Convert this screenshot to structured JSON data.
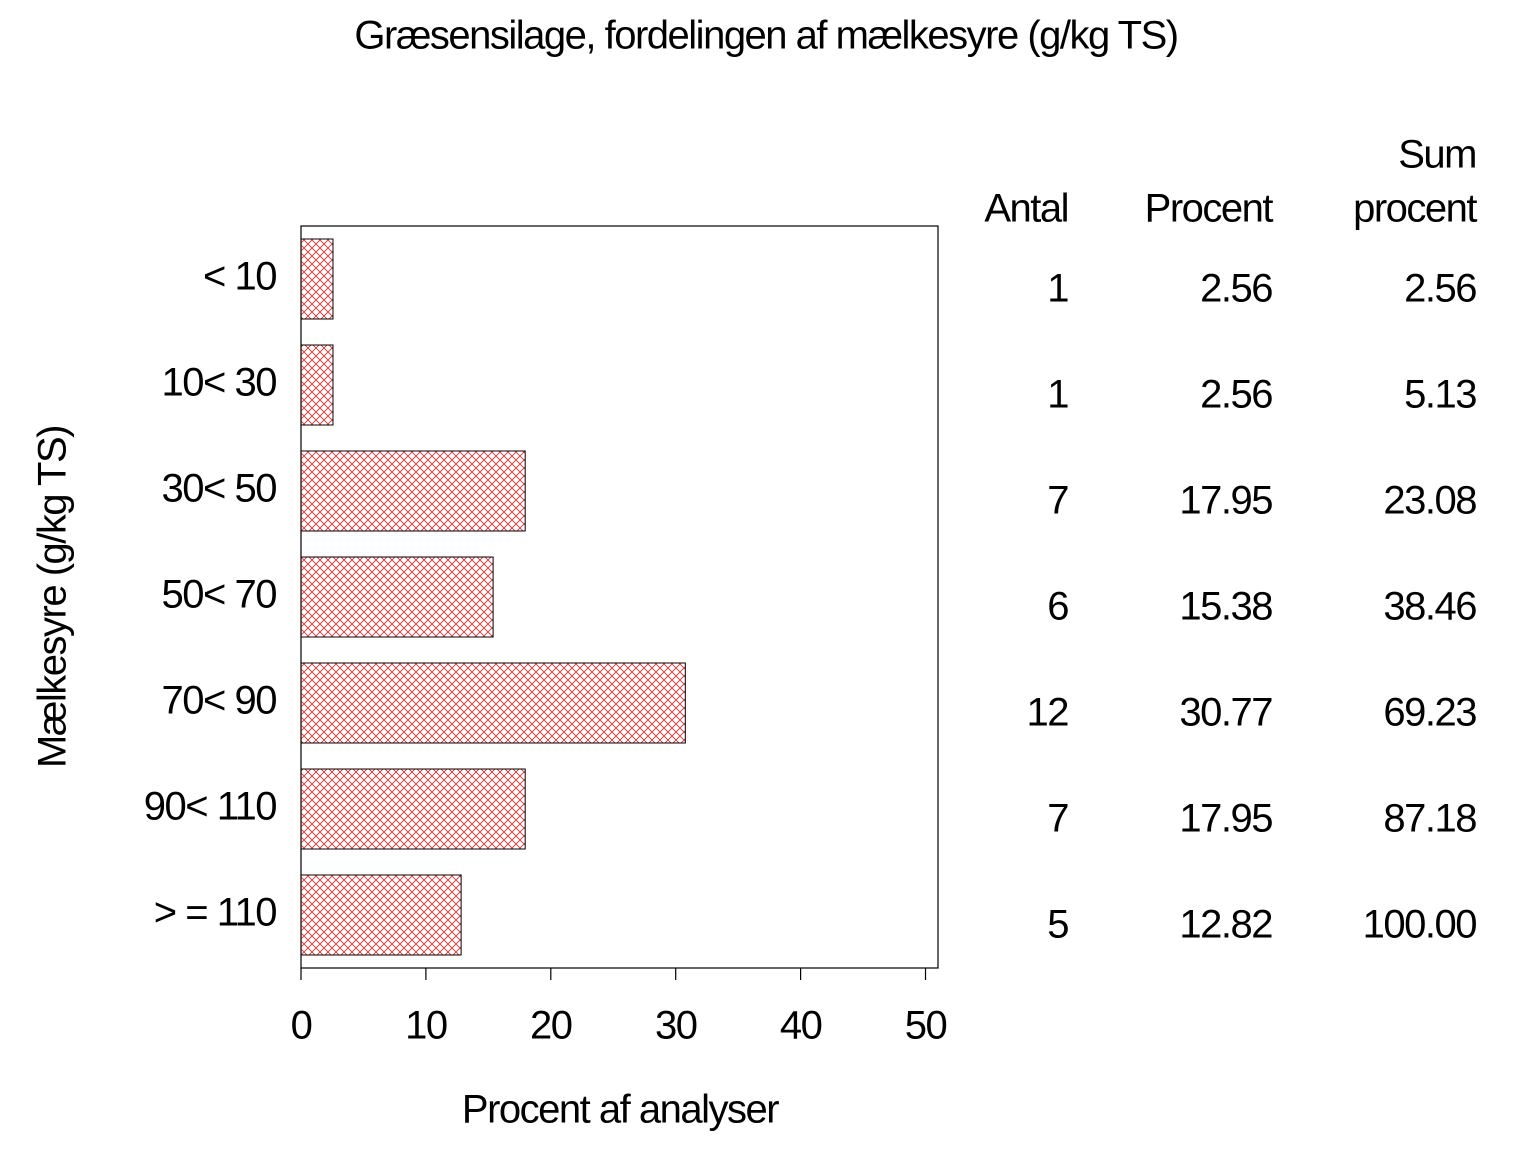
{
  "chart_data": {
    "type": "hbar",
    "title": "Græsensilage,  fordelingen  af  mælkesyre  (g/kg  TS)",
    "x_label": "Procent  af  analyser",
    "y_label": "Mælkesyre  (g/kg  TS)",
    "categories": [
      "< 10",
      "10< 30",
      "30< 50",
      "50< 70",
      "70< 90",
      "90< 110",
      "> = 110"
    ],
    "values": [
      2.56,
      2.56,
      17.95,
      15.38,
      30.77,
      17.95,
      12.82
    ],
    "color": "#e0302a",
    "xlim": [
      0,
      51
    ],
    "xticks": [
      0,
      10,
      20,
      30,
      40,
      50
    ],
    "table": {
      "count_header": "Antal",
      "counts": [
        1,
        1,
        7,
        6,
        12,
        7,
        5
      ],
      "percent_header": "Procent",
      "cumulative_header": [
        "Sum",
        "procent"
      ],
      "cumulative_values": [
        2.56,
        5.13,
        23.08,
        38.46,
        69.23,
        87.18,
        100
      ],
      "cumulative_value_labels": [
        "2.56",
        "5.13",
        "23.08",
        "38.46",
        "69.23",
        "87.18",
        "100.00"
      ]
    }
  }
}
